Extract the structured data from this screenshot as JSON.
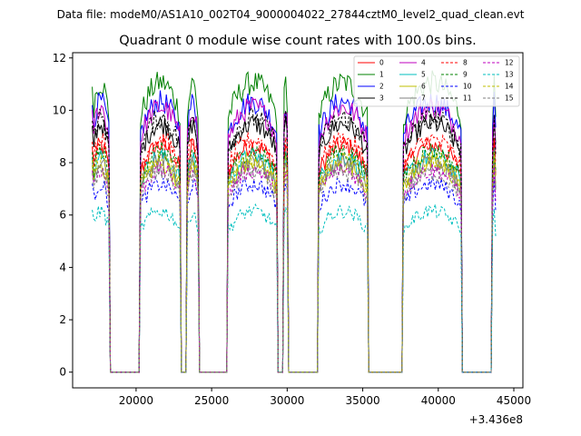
{
  "chart_data": {
    "type": "line",
    "suptitle": "Data file: modeM0/AS1A10_002T04_9000004022_27844cztM0_level2_quad_clean.evt",
    "title": "Quadrant 0 module wise count rates with 100.0s bins.",
    "xlabel": "",
    "ylabel": "",
    "x_offset_label": "+3.436e8",
    "xlim": [
      15800,
      45600
    ],
    "ylim": [
      -0.6,
      12.2
    ],
    "x_ticks": [
      20000,
      25000,
      30000,
      35000,
      40000,
      45000
    ],
    "x_tick_labels": [
      "20000",
      "25000",
      "30000",
      "35000",
      "40000",
      "45000"
    ],
    "y_ticks": [
      0,
      2,
      4,
      6,
      8,
      10,
      12
    ],
    "y_tick_labels": [
      "0",
      "2",
      "4",
      "6",
      "8",
      "10",
      "12"
    ],
    "grid": false,
    "legend_position": "top-right",
    "legend_columns": 4,
    "segments": [
      {
        "start": 17100,
        "end": 18200
      },
      {
        "start": 20300,
        "end": 22950
      },
      {
        "start": 23400,
        "end": 24100
      },
      {
        "start": 26100,
        "end": 29350
      },
      {
        "start": 29750,
        "end": 30050
      },
      {
        "start": 32100,
        "end": 35300
      },
      {
        "start": 37700,
        "end": 41500
      },
      {
        "start": 43600,
        "end": 43800
      }
    ],
    "gaps_level": 0,
    "series": [
      {
        "name": "0",
        "color": "#ff0000",
        "dash": "solid",
        "level": 8.3
      },
      {
        "name": "1",
        "color": "#008000",
        "dash": "solid",
        "level": 10.6
      },
      {
        "name": "2",
        "color": "#0000ff",
        "dash": "solid",
        "level": 9.9
      },
      {
        "name": "3",
        "color": "#000000",
        "dash": "solid",
        "level": 9.1
      },
      {
        "name": "4",
        "color": "#bf00bf",
        "dash": "solid",
        "level": 9.7
      },
      {
        "name": "5",
        "color": "#00bfbf",
        "dash": "solid",
        "level": 7.9
      },
      {
        "name": "6",
        "color": "#bfbf00",
        "dash": "solid",
        "level": 7.6
      },
      {
        "name": "7",
        "color": "#808080",
        "dash": "solid",
        "level": 7.7
      },
      {
        "name": "8",
        "color": "#ff0000",
        "dash": "dashed",
        "level": 8.5
      },
      {
        "name": "9",
        "color": "#008000",
        "dash": "dashed",
        "level": 8.1
      },
      {
        "name": "10",
        "color": "#0000ff",
        "dash": "dashed",
        "level": 6.9
      },
      {
        "name": "11",
        "color": "#000000",
        "dash": "dashed",
        "level": 9.3
      },
      {
        "name": "12",
        "color": "#bf00bf",
        "dash": "dashed",
        "level": 7.4
      },
      {
        "name": "13",
        "color": "#00bfbf",
        "dash": "dashed",
        "level": 5.9
      },
      {
        "name": "14",
        "color": "#bfbf00",
        "dash": "dashed",
        "level": 7.8
      },
      {
        "name": "15",
        "color": "#808080",
        "dash": "dashed",
        "level": 7.3
      }
    ]
  }
}
